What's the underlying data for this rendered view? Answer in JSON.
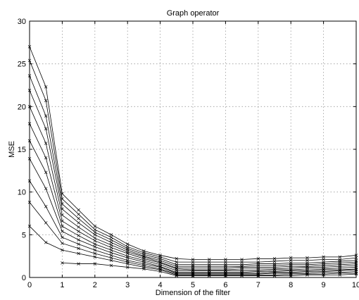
{
  "chart_data": {
    "type": "line",
    "title": "Graph operator",
    "xlabel": "Dimension of the filter",
    "ylabel": "MSE",
    "xlim": [
      0,
      10
    ],
    "ylim": [
      0,
      30
    ],
    "xticks": [
      0,
      1,
      2,
      3,
      4,
      5,
      6,
      7,
      8,
      9,
      10
    ],
    "yticks": [
      0,
      5,
      10,
      15,
      20,
      25,
      30
    ],
    "grid": true,
    "marker": "x",
    "line_color": "#000000",
    "x": [
      0,
      0.5,
      1,
      1.5,
      2,
      2.5,
      3,
      3.5,
      4,
      4.5,
      5,
      5.5,
      6,
      6.5,
      7,
      7.5,
      8,
      8.5,
      9,
      9.5,
      10
    ],
    "series": [
      {
        "values": [
          27.0,
          22.3,
          9.8,
          7.9,
          6.0,
          5.0,
          3.9,
          3.1,
          2.6,
          2.2,
          2.1,
          2.1,
          2.1,
          2.1,
          2.2,
          2.2,
          2.3,
          2.3,
          2.4,
          2.4,
          2.6
        ]
      },
      {
        "values": [
          25.4,
          20.7,
          9.2,
          7.4,
          5.6,
          4.7,
          3.6,
          2.9,
          2.4,
          1.8,
          1.8,
          1.8,
          1.8,
          1.8,
          1.8,
          1.9,
          2.0,
          2.0,
          2.1,
          2.1,
          2.3
        ]
      },
      {
        "values": [
          23.6,
          18.9,
          8.6,
          6.9,
          5.3,
          4.4,
          3.4,
          2.7,
          2.2,
          1.5,
          1.5,
          1.5,
          1.5,
          1.5,
          1.6,
          1.6,
          1.7,
          1.7,
          1.8,
          1.9,
          2.0
        ]
      },
      {
        "values": [
          21.9,
          17.4,
          8.0,
          6.4,
          5.0,
          4.1,
          3.2,
          2.5,
          2.0,
          1.3,
          1.3,
          1.3,
          1.3,
          1.3,
          1.4,
          1.4,
          1.5,
          1.5,
          1.6,
          1.7,
          1.8
        ]
      },
      {
        "values": [
          20.0,
          15.7,
          7.3,
          5.9,
          4.6,
          3.8,
          3.0,
          2.4,
          1.8,
          1.1,
          1.1,
          1.1,
          1.1,
          1.2,
          1.2,
          1.2,
          1.3,
          1.3,
          1.4,
          1.5,
          1.6
        ]
      },
      {
        "values": [
          18.0,
          14.0,
          6.6,
          5.4,
          4.3,
          3.5,
          2.8,
          2.2,
          1.7,
          1.0,
          0.9,
          0.9,
          0.9,
          1.0,
          1.0,
          1.0,
          1.1,
          1.2,
          1.2,
          1.3,
          1.4
        ]
      },
      {
        "values": [
          16.0,
          12.3,
          6.0,
          4.9,
          3.9,
          3.2,
          2.5,
          2.0,
          1.5,
          0.8,
          0.8,
          0.8,
          0.8,
          0.8,
          0.8,
          0.9,
          0.9,
          1.0,
          1.0,
          1.1,
          1.2
        ]
      },
      {
        "values": [
          13.9,
          10.4,
          5.4,
          4.4,
          3.6,
          2.9,
          2.3,
          1.8,
          1.3,
          0.6,
          0.6,
          0.6,
          0.6,
          0.6,
          0.7,
          0.7,
          0.8,
          0.8,
          0.9,
          0.9,
          1.0
        ]
      },
      {
        "values": [
          11.3,
          8.3,
          4.7,
          3.9,
          3.2,
          2.6,
          2.0,
          1.6,
          1.2,
          0.5,
          0.5,
          0.5,
          0.5,
          0.5,
          0.5,
          0.6,
          0.6,
          0.7,
          0.7,
          0.8,
          0.9
        ]
      },
      {
        "values": [
          8.8,
          6.4,
          4.0,
          3.4,
          2.8,
          2.3,
          1.8,
          1.4,
          1.0,
          0.4,
          0.4,
          0.4,
          0.4,
          0.4,
          0.4,
          0.5,
          0.5,
          0.5,
          0.6,
          0.6,
          0.7
        ]
      },
      {
        "values": [
          6.0,
          4.1,
          3.2,
          2.8,
          2.4,
          2.0,
          1.6,
          1.2,
          0.9,
          0.3,
          0.3,
          0.3,
          0.3,
          0.3,
          0.3,
          0.3,
          0.4,
          0.4,
          0.4,
          0.5,
          0.5
        ]
      },
      {
        "values": [
          null,
          null,
          1.7,
          1.6,
          1.6,
          1.4,
          1.2,
          1.0,
          0.7,
          0.2,
          0.2,
          0.2,
          0.2,
          0.2,
          0.2,
          0.2,
          0.2,
          0.3,
          0.3,
          0.3,
          0.4
        ]
      }
    ]
  }
}
